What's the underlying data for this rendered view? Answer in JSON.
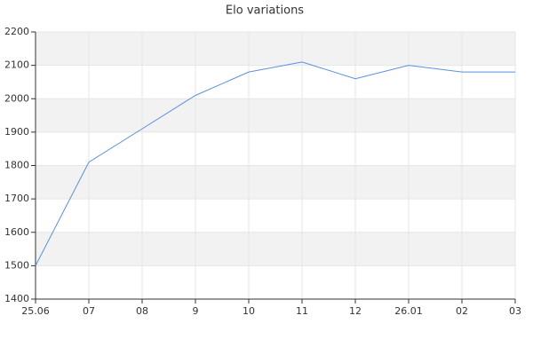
{
  "chart_data": {
    "type": "line",
    "title": "Elo variations",
    "categories": [
      "25.06",
      "07",
      "08",
      "9",
      "10",
      "11",
      "12",
      "26.01",
      "02",
      "03"
    ],
    "values": [
      1500,
      1810,
      1910,
      2010,
      2080,
      2110,
      2060,
      2100,
      2080,
      2080
    ],
    "color": "#5b8fe0",
    "ylim": [
      1400,
      2200
    ],
    "yticks": [
      1400,
      1500,
      1600,
      1700,
      1800,
      1900,
      2000,
      2100,
      2200
    ],
    "grid": true,
    "band_color": "#f2f2f2"
  }
}
